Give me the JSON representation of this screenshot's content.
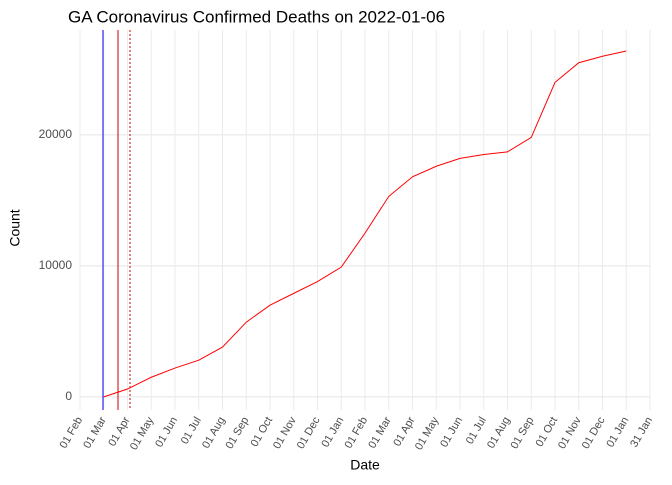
{
  "chart_data": {
    "type": "line",
    "title": "GA Coronavirus Confirmed Deaths on 2022-01-06",
    "x_label": "Date",
    "y_label": "Count",
    "categories": [
      "01 Feb",
      "01 Mar",
      "01 Apr",
      "01 May",
      "01 Jun",
      "01 Jul",
      "01 Aug",
      "01 Sep",
      "01 Oct",
      "01 Nov",
      "01 Dec",
      "01 Jan",
      "01 Feb",
      "01 Mar",
      "01 Apr",
      "01 May",
      "01 Jun",
      "01 Jul",
      "01 Aug",
      "01 Sep",
      "01 Oct",
      "01 Nov",
      "01 Dec",
      "01 Jan",
      "31 Jan"
    ],
    "series": [
      {
        "name": "Deaths",
        "color": "#ff0000",
        "values": [
          null,
          0,
          600,
          1500,
          2200,
          2800,
          3800,
          5700,
          7000,
          7900,
          8800,
          9900,
          12500,
          15300,
          16800,
          17600,
          18200,
          18500,
          18700,
          19800,
          24000,
          25500,
          26000,
          26400,
          null
        ]
      }
    ],
    "ylim": [
      -1000,
      28000
    ],
    "yticks": [
      0,
      10000,
      20000
    ],
    "grid": true
  }
}
